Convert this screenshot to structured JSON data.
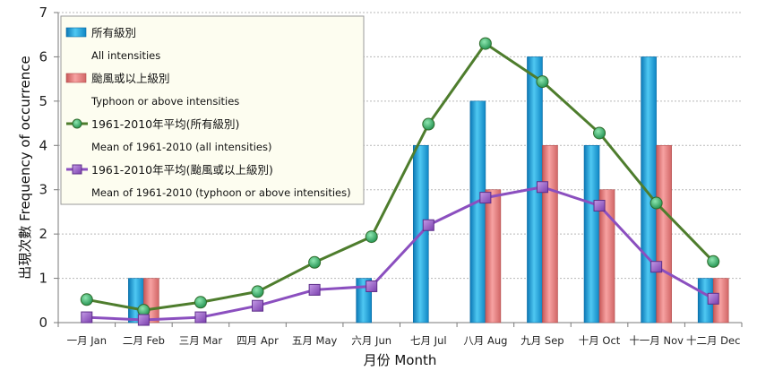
{
  "chart_data": {
    "type": "bar",
    "title": "",
    "xlabel": "月份 Month",
    "ylabel": "出現次數  Frequency of occurrence",
    "ylim": [
      0,
      7
    ],
    "yticks": [
      0,
      1,
      2,
      3,
      4,
      5,
      6,
      7
    ],
    "grid": true,
    "legend_position": "top-left",
    "categories": [
      "一月 Jan",
      "二月 Feb",
      "三月 Mar",
      "四月 Apr",
      "五月 May",
      "六月 Jun",
      "七月 Jul",
      "八月 Aug",
      "九月 Sep",
      "十月 Oct",
      "十一月 Nov",
      "十二月 Dec"
    ],
    "series": [
      {
        "name": "所有級別",
        "subname": "All intensities",
        "kind": "bar",
        "color": "#22a6e0",
        "values": [
          0,
          1,
          0,
          0,
          0,
          1,
          4,
          5,
          6,
          4,
          6,
          1
        ]
      },
      {
        "name": "颱風或以上級別",
        "subname": "Typhoon or above intensities",
        "kind": "bar",
        "color": "#ec7c7c",
        "values": [
          0,
          1,
          0,
          0,
          0,
          0,
          0,
          3,
          4,
          3,
          4,
          1
        ]
      },
      {
        "name": "1961-2010年平均(所有級別)",
        "subname": "Mean of 1961-2010 (all intensities)",
        "kind": "line",
        "color": "#4e7d2d",
        "marker_color": "#35b36a",
        "marker": "circle",
        "values": [
          0.52,
          0.28,
          0.46,
          0.7,
          1.36,
          1.94,
          4.48,
          6.3,
          5.44,
          4.28,
          2.7,
          1.38
        ]
      },
      {
        "name": "1961-2010年平均(颱風或以上級別)",
        "subname": "Mean of 1961-2010 (typhoon or above intensities)",
        "kind": "line",
        "color": "#8b4fbf",
        "marker_color": "#9a5ec7",
        "marker": "square",
        "values": [
          0.12,
          0.06,
          0.12,
          0.38,
          0.74,
          0.82,
          2.2,
          2.82,
          3.06,
          2.64,
          1.26,
          0.54
        ]
      }
    ]
  }
}
